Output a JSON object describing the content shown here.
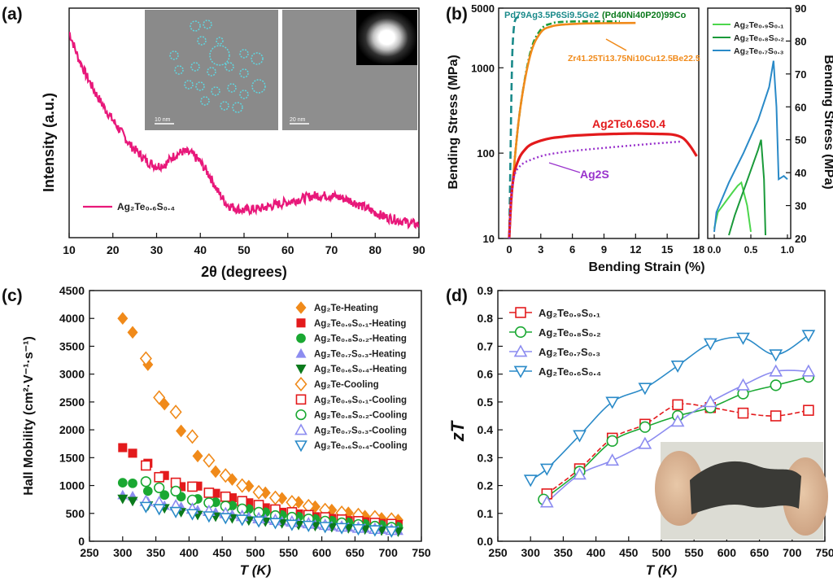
{
  "colors": {
    "pink": "#e8187a",
    "orange": "#f08a1a",
    "red": "#e31a1c",
    "green": "#1aa832",
    "lavender": "#8c8cf0",
    "dkgreen": "#0b7a1c",
    "purple": "#9932cc",
    "teal": "#1a8a8a",
    "blue": "#2a8ac8",
    "ltgreen": "#4cd64c",
    "midgreen": "#1a9a3a"
  },
  "panel_labels": [
    "(a)",
    "(b)",
    "(c)",
    "(d)"
  ],
  "chart_data": [
    {
      "id": "a",
      "type": "line",
      "xlabel": "2θ (degrees)",
      "ylabel": "Intensity (a.u.)",
      "xlim": [
        10,
        90
      ],
      "xticks": [
        10,
        20,
        30,
        40,
        50,
        60,
        70,
        80,
        90
      ],
      "series": [
        {
          "name": "Ag2Te0.6S0.4",
          "name_html": "Ag₂Te₀.₆S₀.₄",
          "x": [
            10,
            12,
            14,
            16,
            18,
            20,
            22,
            24,
            26,
            28,
            30,
            32,
            34,
            36,
            38,
            40,
            42,
            44,
            46,
            48,
            50,
            54,
            58,
            62,
            66,
            70,
            74,
            78,
            82,
            86,
            90
          ],
          "y": [
            0.98,
            0.86,
            0.77,
            0.69,
            0.62,
            0.56,
            0.5,
            0.44,
            0.4,
            0.36,
            0.34,
            0.35,
            0.39,
            0.41,
            0.4,
            0.36,
            0.3,
            0.22,
            0.16,
            0.14,
            0.13,
            0.14,
            0.16,
            0.18,
            0.2,
            0.2,
            0.18,
            0.14,
            0.1,
            0.08,
            0.06
          ]
        }
      ],
      "inset_labels": {
        "scale1": "10 nm",
        "scale2": "20 nm"
      }
    },
    {
      "id": "b",
      "type": "line",
      "xlabel": "Bending Strain (%)",
      "ylabel": "Bending Stress (MPa)",
      "ylabel_right": "Bending Stress (MPa)",
      "xlim": [
        -1,
        18
      ],
      "xticks": [
        0,
        3,
        6,
        9,
        12,
        15,
        18
      ],
      "ylim_log": [
        10,
        5000
      ],
      "yticks": [
        10,
        100,
        1000,
        5000
      ],
      "series": [
        {
          "name": "Pd79Ag3.5P6Si9.5Ge2",
          "x": [
            0,
            0.1,
            0.2,
            0.3,
            0.45,
            0.6,
            0.8,
            1.2
          ],
          "y": [
            10,
            60,
            400,
            1500,
            3000,
            3700,
            3900,
            4000
          ]
        },
        {
          "name": "(Pd40Ni40P20)99Co",
          "x": [
            0,
            0.3,
            1,
            2,
            3,
            4,
            5,
            7,
            9,
            10.5
          ],
          "y": [
            10,
            40,
            300,
            1500,
            2800,
            3300,
            3450,
            3500,
            3500,
            3500
          ]
        },
        {
          "name": "Zr41.25Ti13.75Ni10Cu12.5Be22.5",
          "x": [
            0,
            0.3,
            1,
            2,
            3,
            4,
            5,
            7,
            9,
            12
          ],
          "y": [
            10,
            40,
            300,
            1400,
            2600,
            3050,
            3200,
            3300,
            3330,
            3350
          ]
        },
        {
          "name": "Ag2Te0.6S0.4",
          "x": [
            0,
            0.2,
            0.5,
            1,
            1.5,
            2,
            3,
            4,
            5,
            6,
            8,
            10,
            12,
            14,
            15.5,
            16.5,
            17.2,
            17.8
          ],
          "y": [
            10,
            30,
            60,
            90,
            110,
            125,
            140,
            150,
            155,
            160,
            165,
            168,
            170,
            168,
            165,
            150,
            120,
            92
          ]
        },
        {
          "name": "Ag2S",
          "x": [
            0,
            0.2,
            0.5,
            1,
            1.5,
            2,
            3,
            4,
            6,
            8,
            10,
            12,
            14,
            16.4
          ],
          "y": [
            10,
            30,
            55,
            70,
            78,
            83,
            92,
            98,
            106,
            112,
            118,
            124,
            130,
            137
          ]
        }
      ],
      "labels_text": {
        "pd_a": "Pd79Ag3.5P6Si9.5Ge2",
        "pd_b": "(Pd40Ni40P20)99Co",
        "zr": "Zr41.25Ti13.75Ni10Cu12.5Be22.5",
        "ag1": "Ag2Te0.6S0.4",
        "ag2": "Ag2S"
      },
      "inset": {
        "xlim": [
          0,
          1.0
        ],
        "xticks": [
          0.0,
          0.5,
          1.0
        ],
        "ylim": [
          20,
          90
        ],
        "yticks": [
          20,
          30,
          40,
          50,
          60,
          70,
          80,
          90
        ],
        "series": [
          {
            "name": "Ag2Te0.9S0.1",
            "x": [
              0.0,
              0.05,
              0.15,
              0.25,
              0.32,
              0.37,
              0.45,
              0.5
            ],
            "y": [
              23,
              28,
              31,
              34,
              36,
              37,
              30,
              22
            ]
          },
          {
            "name": "Ag2Te0.8S0.2",
            "x": [
              0.2,
              0.28,
              0.36,
              0.44,
              0.52,
              0.6,
              0.64,
              0.68,
              0.7
            ],
            "y": [
              21,
              27,
              32,
              37,
              42,
              47,
              50,
              38,
              21
            ]
          },
          {
            "name": "Ag2Te0.7S0.3",
            "x": [
              0.0,
              0.03,
              0.2,
              0.4,
              0.6,
              0.75,
              0.81,
              0.85,
              0.88,
              0.95,
              1.0
            ],
            "y": [
              22,
              28,
              37,
              46,
              56,
              66,
              74,
              60,
              38,
              39,
              38
            ]
          }
        ]
      }
    },
    {
      "id": "c",
      "type": "scatter",
      "xlabel": "T (K)",
      "ylabel": "Hall Mobility (cm²·V⁻¹·s⁻¹)",
      "xlim": [
        250,
        750
      ],
      "xticks": [
        250,
        300,
        350,
        400,
        450,
        500,
        550,
        600,
        650,
        700,
        750
      ],
      "ylim": [
        0,
        4500
      ],
      "yticks": [
        0,
        500,
        1000,
        1500,
        2000,
        2500,
        3000,
        3500,
        4000,
        4500
      ],
      "series": [
        {
          "name": "Ag2Te-Heating",
          "legend": "Ag₂Te-Heating",
          "marker": "diamond-filled",
          "color": "#f08a1a",
          "x": [
            300,
            315,
            338,
            363,
            388,
            413,
            440,
            465,
            490,
            515,
            540,
            565,
            590,
            615,
            640,
            665,
            690,
            715
          ],
          "y": [
            4000,
            3750,
            3170,
            2460,
            1980,
            1530,
            1250,
            1110,
            990,
            870,
            770,
            700,
            620,
            560,
            510,
            450,
            410,
            380
          ]
        },
        {
          "name": "Ag2Te0.9S0.1-Heating",
          "legend": "Ag₂Te₀.₉S₀.₁-Heating",
          "marker": "square-filled",
          "color": "#e31a1c",
          "x": [
            300,
            315,
            338,
            363,
            388,
            413,
            440,
            465,
            490,
            515,
            540,
            565,
            590,
            615,
            640,
            665,
            690,
            715
          ],
          "y": [
            1680,
            1580,
            1400,
            1180,
            980,
            990,
            860,
            780,
            690,
            600,
            520,
            490,
            440,
            410,
            370,
            350,
            320,
            300
          ]
        },
        {
          "name": "Ag2Te0.8S0.2-Heating",
          "legend": "Ag₂Te₀.₈S₀.₂-Heating",
          "marker": "circle-filled",
          "color": "#1aa832",
          "x": [
            300,
            315,
            338,
            363,
            388,
            413,
            440,
            465,
            490,
            515,
            540,
            565,
            590,
            615,
            640,
            665,
            690,
            715
          ],
          "y": [
            1050,
            1040,
            900,
            830,
            800,
            760,
            700,
            640,
            580,
            520,
            470,
            440,
            400,
            370,
            340,
            310,
            290,
            260
          ]
        },
        {
          "name": "Ag2Te0.7S0.3-Heating",
          "legend": "Ag₂Te₀.₇S₀.₃-Heating",
          "marker": "triangle-up-filled",
          "color": "#8c8cf0",
          "x": [
            300,
            315,
            338,
            363,
            388,
            413,
            440,
            465,
            490,
            515,
            540,
            565,
            590,
            615,
            640,
            665,
            690,
            715
          ],
          "y": [
            830,
            810,
            710,
            640,
            620,
            560,
            520,
            480,
            440,
            400,
            360,
            330,
            300,
            270,
            250,
            230,
            210,
            190
          ]
        },
        {
          "name": "Ag2Te0.6S0.4-Heating",
          "legend": "Ag₂Te₀.₆S₀.₄-Heating",
          "marker": "triangle-down-filled",
          "color": "#0b7a1c",
          "x": [
            300,
            315,
            338,
            363,
            388,
            413,
            440,
            465,
            490,
            515,
            540,
            565,
            590,
            615,
            640,
            665,
            690,
            715
          ],
          "y": [
            760,
            720,
            640,
            590,
            520,
            470,
            440,
            410,
            370,
            350,
            320,
            290,
            270,
            250,
            230,
            210,
            190,
            170
          ]
        },
        {
          "name": "Ag2Te-Cooling",
          "legend": "Ag₂Te-Cooling",
          "marker": "diamond-open",
          "color": "#f08a1a",
          "x": [
            335,
            355,
            380,
            405,
            430,
            455,
            480,
            505,
            530,
            555,
            580,
            605,
            630,
            655,
            680,
            705
          ],
          "y": [
            3280,
            2580,
            2320,
            1880,
            1450,
            1180,
            1000,
            880,
            780,
            700,
            630,
            560,
            510,
            470,
            430,
            390
          ]
        },
        {
          "name": "Ag2Te0.9S0.1-Cooling",
          "legend": "Ag₂Te₀.₉S₀.₁-Cooling",
          "marker": "square-open",
          "color": "#e31a1c",
          "x": [
            335,
            355,
            380,
            405,
            430,
            455,
            480,
            505,
            530,
            555,
            580,
            605,
            630,
            655,
            680,
            705
          ],
          "y": [
            1360,
            1150,
            1050,
            980,
            870,
            800,
            720,
            650,
            570,
            520,
            470,
            430,
            390,
            360,
            330,
            310
          ]
        },
        {
          "name": "Ag2Te0.8S0.2-Cooling",
          "legend": "Ag₂Te₀.₈S₀.₂-Cooling",
          "marker": "circle-open",
          "color": "#1aa832",
          "x": [
            335,
            355,
            380,
            405,
            430,
            455,
            480,
            505,
            530,
            555,
            580,
            605,
            630,
            655,
            680,
            705
          ],
          "y": [
            1070,
            960,
            900,
            740,
            690,
            630,
            580,
            520,
            460,
            430,
            400,
            360,
            330,
            300,
            270,
            250
          ]
        },
        {
          "name": "Ag2Te0.7S0.3-Cooling",
          "legend": "Ag₂Te₀.₇S₀.₃-Cooling",
          "marker": "triangle-up-open",
          "color": "#8c8cf0",
          "x": [
            335,
            355,
            380,
            405,
            430,
            455,
            480,
            505,
            530,
            555,
            580,
            605,
            630,
            655,
            680,
            705
          ],
          "y": [
            720,
            700,
            640,
            580,
            540,
            500,
            450,
            410,
            380,
            350,
            320,
            290,
            260,
            240,
            220,
            200
          ]
        },
        {
          "name": "Ag2Te0.6S0.4-Cooling",
          "legend": "Ag₂Te₀.₆S₀.₄-Cooling",
          "marker": "triangle-down-open",
          "color": "#2a8ac8",
          "x": [
            335,
            355,
            380,
            405,
            430,
            455,
            480,
            505,
            530,
            555,
            580,
            605,
            630,
            655,
            680,
            705
          ],
          "y": [
            620,
            580,
            530,
            490,
            450,
            420,
            390,
            360,
            330,
            300,
            280,
            260,
            240,
            220,
            200,
            180
          ]
        }
      ]
    },
    {
      "id": "d",
      "type": "line",
      "xlabel": "T (K)",
      "ylabel": "zT",
      "xlim": [
        250,
        750
      ],
      "xticks": [
        250,
        300,
        350,
        400,
        450,
        500,
        550,
        600,
        650,
        700,
        750
      ],
      "ylim": [
        0.0,
        0.9
      ],
      "yticks": [
        0.0,
        0.1,
        0.2,
        0.3,
        0.4,
        0.5,
        0.6,
        0.7,
        0.8,
        0.9
      ],
      "series": [
        {
          "name": "Ag2Te0.9S0.1",
          "legend": "Ag₂Te₀.₉S₀.₁",
          "marker": "square-open",
          "color": "#e31a1c",
          "x": [
            325,
            375,
            425,
            475,
            525,
            575,
            625,
            675,
            725
          ],
          "y": [
            0.17,
            0.26,
            0.37,
            0.42,
            0.49,
            0.48,
            0.46,
            0.45,
            0.47
          ]
        },
        {
          "name": "Ag2Te0.8S0.2",
          "legend": "Ag₂Te₀.₈S₀.₂",
          "marker": "circle-open",
          "color": "#1aa832",
          "x": [
            320,
            375,
            425,
            475,
            525,
            575,
            625,
            675,
            725
          ],
          "y": [
            0.15,
            0.25,
            0.36,
            0.41,
            0.45,
            0.48,
            0.53,
            0.56,
            0.59
          ]
        },
        {
          "name": "Ag2Te0.7S0.3",
          "legend": "Ag₂Te₀.₇S₀.₃",
          "marker": "triangle-up-open",
          "color": "#8c8cf0",
          "x": [
            325,
            375,
            425,
            475,
            525,
            575,
            625,
            675,
            725
          ],
          "y": [
            0.14,
            0.24,
            0.29,
            0.35,
            0.43,
            0.5,
            0.56,
            0.61,
            0.61
          ]
        },
        {
          "name": "Ag2Te0.6S0.4",
          "legend": "Ag₂Te₀.₆S₀.₄",
          "marker": "triangle-down-open",
          "color": "#2a8ac8",
          "x": [
            300,
            325,
            375,
            425,
            475,
            525,
            575,
            625,
            675,
            725
          ],
          "y": [
            0.22,
            0.26,
            0.38,
            0.5,
            0.55,
            0.63,
            0.71,
            0.73,
            0.67,
            0.74
          ]
        }
      ]
    }
  ]
}
